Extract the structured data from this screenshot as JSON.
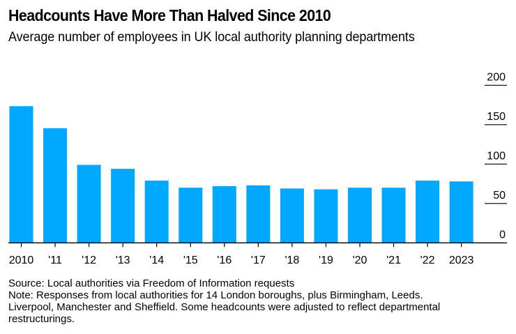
{
  "header": {
    "title": "Headcounts Have More Than Halved Since 2010",
    "subtitle": "Average number of employees in UK local authority planning departments"
  },
  "footer": {
    "lines": [
      "Source: Local authorities via Freedom of Information requests",
      "Note: Responses from local authorities for 14 London boroughs, plus Birmingham, Leeds.",
      "Liverpool, Manchester and Sheffield. Some headcounts were adjusted to reflect departmental",
      "restructurings."
    ]
  },
  "colors": {
    "bar": "#00A8FF",
    "axis": "#000000",
    "gridline": "#000000"
  },
  "chart_data": {
    "type": "bar",
    "title": "Headcounts Have More Than Halved Since 2010",
    "subtitle": "Average number of employees in UK local authority planning departments",
    "xlabel": "",
    "ylabel": "",
    "categories": [
      "2010",
      "'11",
      "'12",
      "'13",
      "'14",
      "'15",
      "'16",
      "'17",
      "'18",
      "'19",
      "'20",
      "'21",
      "'22",
      "2023"
    ],
    "values": [
      173.5,
      145.5,
      99,
      94,
      79,
      70,
      72,
      73,
      69,
      68,
      70,
      70,
      79,
      78
    ],
    "ylim": [
      0,
      200
    ],
    "yticks": [
      0,
      50,
      100,
      150,
      200
    ],
    "ytick_labels": [
      "0",
      "50",
      "100",
      "150",
      "200"
    ],
    "y_axis_side": "right",
    "grid": "short right-side tick lines",
    "legend": "none"
  }
}
